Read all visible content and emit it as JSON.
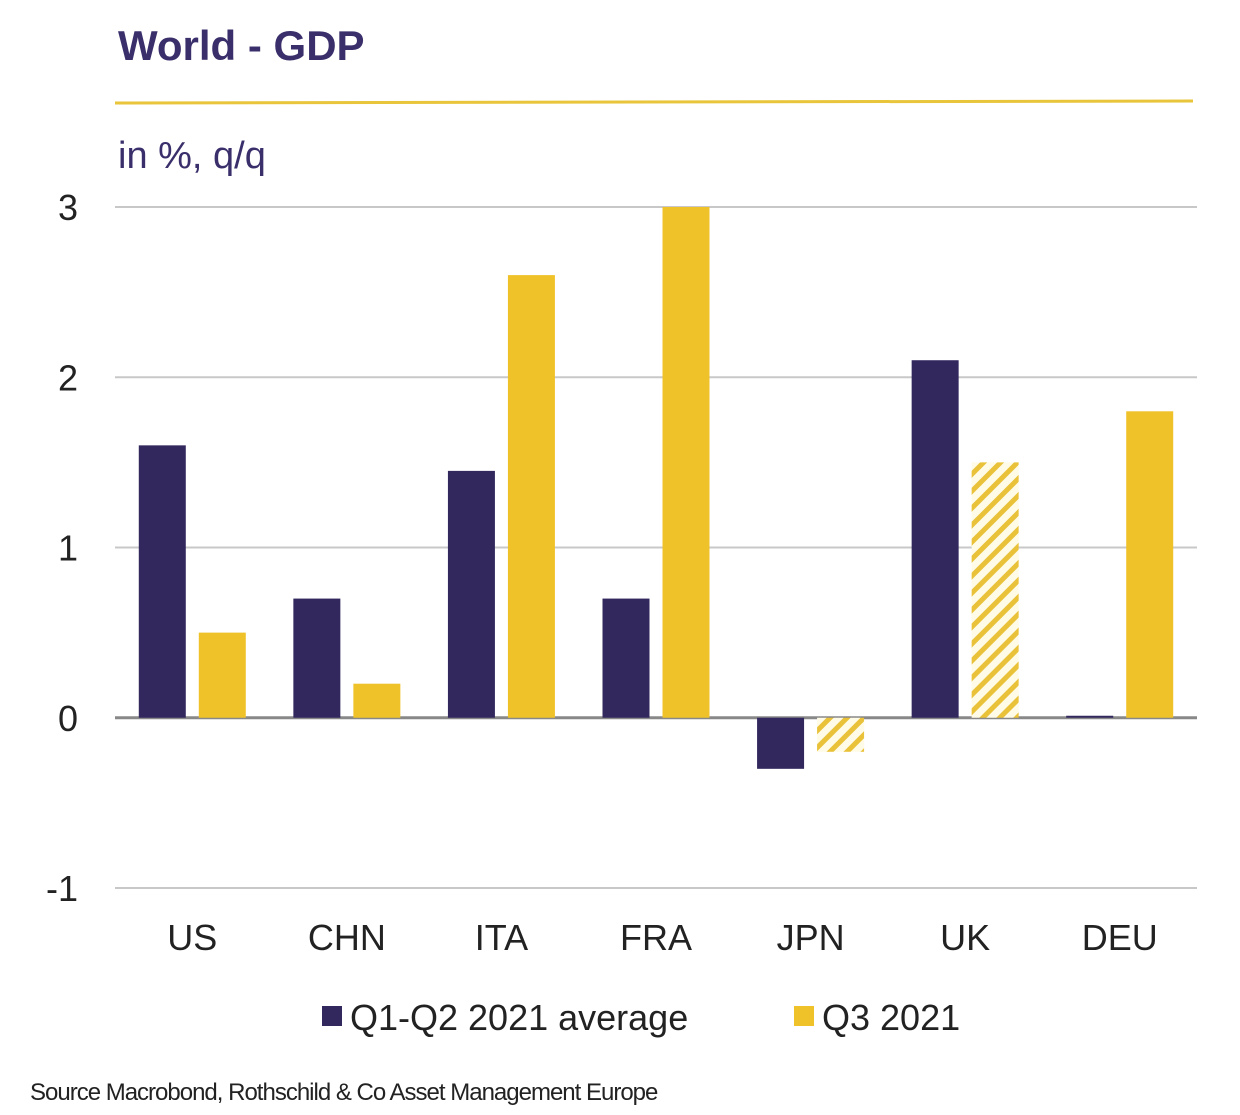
{
  "chart_data": {
    "type": "bar",
    "title": "World - GDP",
    "subtitle": "in %, q/q",
    "categories": [
      "US",
      "CHN",
      "ITA",
      "FRA",
      "JPN",
      "UK",
      "DEU"
    ],
    "series": [
      {
        "name": "Q1-Q2 2021 average",
        "color": "#33285e",
        "values": [
          1.6,
          0.7,
          1.45,
          0.7,
          -0.3,
          2.1,
          0.01
        ]
      },
      {
        "name": "Q3 2021",
        "color": "#f0c22a",
        "values": [
          0.5,
          0.2,
          2.6,
          3.0,
          -0.2,
          1.5,
          1.8
        ],
        "hatched": [
          false,
          false,
          false,
          false,
          true,
          true,
          false
        ]
      }
    ],
    "ylim": [
      -1,
      3
    ],
    "yticks": [
      "-1",
      "0",
      "1",
      "2",
      "3"
    ],
    "grid": true,
    "legend_placement": "bottom",
    "source": "Source Macrobond, Rothschild & Co Asset Management Europe",
    "colors": {
      "title": "#3a2f6b",
      "rule": "#e8c53a",
      "grid": "#c8c8c8",
      "zero": "#888888"
    }
  }
}
